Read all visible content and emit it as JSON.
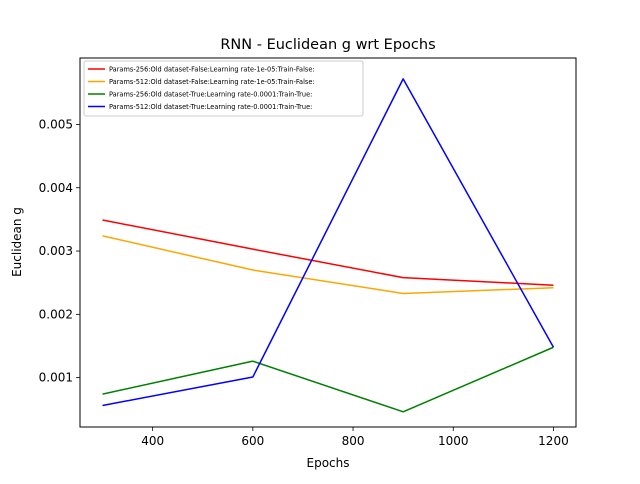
{
  "chart_data": {
    "type": "line",
    "title": "RNN - Euclidean g wrt Epochs",
    "xlabel": "Epochs",
    "ylabel": "Euclidean g",
    "xlim": [
      255,
      1245
    ],
    "ylim": [
      0.00022,
      0.00605
    ],
    "x_ticks": [
      {
        "value": 400,
        "label": "400"
      },
      {
        "value": 600,
        "label": "600"
      },
      {
        "value": 800,
        "label": "800"
      },
      {
        "value": 1000,
        "label": "1000"
      },
      {
        "value": 1200,
        "label": "1200"
      }
    ],
    "y_ticks": [
      {
        "value": 0.001,
        "label": "0.001"
      },
      {
        "value": 0.002,
        "label": "0.002"
      },
      {
        "value": 0.003,
        "label": "0.003"
      },
      {
        "value": 0.004,
        "label": "0.004"
      },
      {
        "value": 0.005,
        "label": "0.005"
      }
    ],
    "grid": false,
    "legend_position": "top-left",
    "x": [
      300,
      600,
      900,
      1200
    ],
    "series": [
      {
        "name": "Params-256:Old dataset-False:Learning rate-1e-05:Train-False:",
        "color": "#ff0000",
        "values": [
          0.00349,
          0.00303,
          0.00258,
          0.00246
        ]
      },
      {
        "name": "Params-512:Old dataset-False:Learning rate-1e-05:Train-False:",
        "color": "#ffa500",
        "values": [
          0.00324,
          0.0027,
          0.00233,
          0.00242
        ]
      },
      {
        "name": "Params-256:Old dataset-True:Learning rate-0.0001:Train-True:",
        "color": "#008000",
        "values": [
          0.00074,
          0.00126,
          0.00046,
          0.00148
        ]
      },
      {
        "name": "Params-512:Old dataset-True:Learning rate-0.0001:Train-True:",
        "color": "#0000ff",
        "values": [
          0.00056,
          0.00101,
          0.00572,
          0.00148
        ]
      }
    ]
  }
}
